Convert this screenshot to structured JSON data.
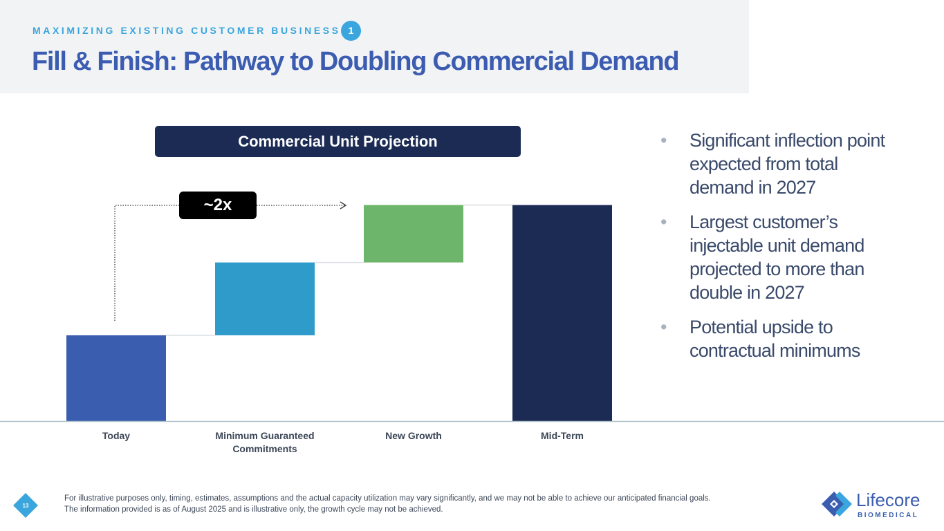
{
  "header": {
    "kicker": "MAXIMIZING EXISTING CUSTOMER BUSINESS",
    "section_badge": "1",
    "title": "Fill & Finish: Pathway to Doubling Commercial Demand"
  },
  "chart_data": {
    "type": "bar",
    "subtype": "waterfall",
    "title": "Commercial Unit Projection",
    "categories": [
      "Today",
      "Minimum Guaranteed Commitments",
      "New Growth",
      "Mid-Term"
    ],
    "values": [
      1.0,
      0.85,
      0.67,
      2.52
    ],
    "value_kind": [
      "total",
      "increment",
      "increment",
      "total"
    ],
    "colors": [
      "#3a5db0",
      "#2e9bcb",
      "#6db56a",
      "#1c2b54"
    ],
    "annotation": "~2x",
    "y_axis_shown": false,
    "grid": false
  },
  "bullets": [
    "Significant inflection point expected from total demand in 2027",
    "Largest customer’s injectable unit demand projected to more than double in 2027",
    "Potential upside to contractual minimums"
  ],
  "footer": {
    "page_number": "13",
    "note_line1": "For illustrative purposes only, timing, estimates, assumptions and the actual capacity utilization may vary significantly, and we may not be able to achieve our anticipated financial goals.",
    "note_line2": "The information provided is as of August 2025 and is illustrative only, the growth cycle may not be achieved.",
    "logo_text": "Lifecore",
    "logo_subtext": "BIOMEDICAL"
  }
}
